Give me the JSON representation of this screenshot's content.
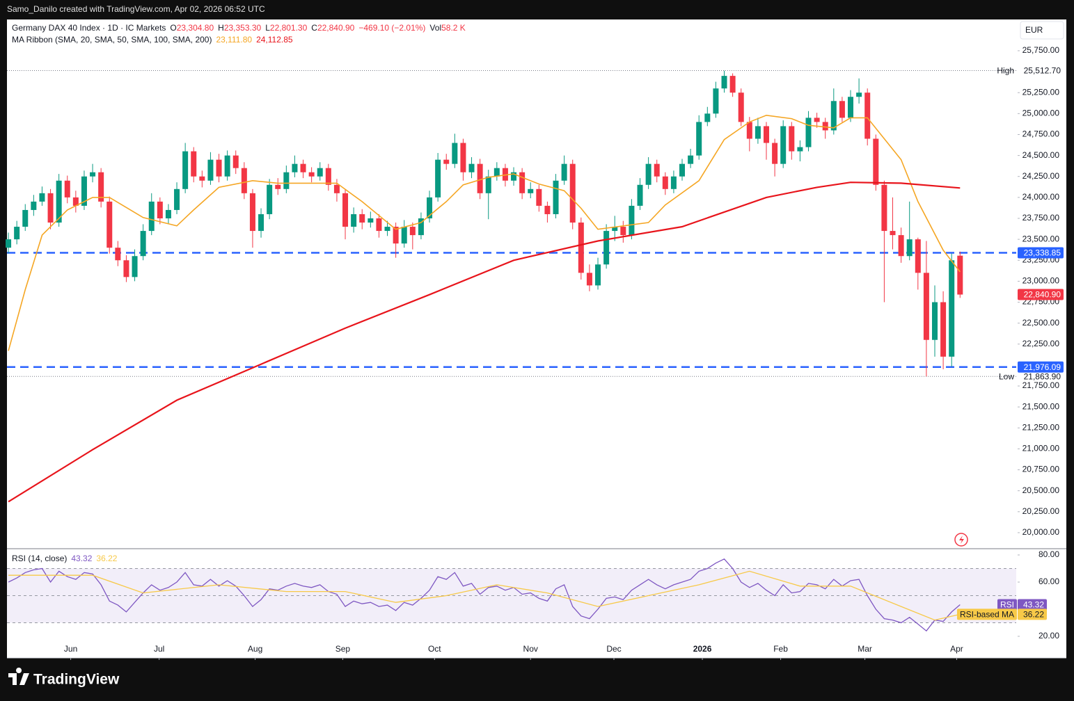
{
  "header": {
    "attribution": "Samo_Danilo created with TradingView.com, Apr 02, 2026 06:52 UTC",
    "brand": "TradingView"
  },
  "chart_data": [
    {
      "type": "candlestick",
      "title": "Germany DAX 40 Index · 1D · IC Markets",
      "ohlc_labels": [
        {
          "key": "O",
          "value": "23,304.80"
        },
        {
          "key": "H",
          "value": "23,353.30"
        },
        {
          "key": "L",
          "value": "22,801.30"
        },
        {
          "key": "C",
          "value": "22,840.90"
        }
      ],
      "change": "−469.10 (−2.01%)",
      "volume_key": "Vol",
      "volume": "58.2 K",
      "currency": "EUR",
      "up_color": "#089981",
      "down_color": "#f23645",
      "xlim": [
        -0.17,
        119.67
      ],
      "xticks": [
        {
          "value": 7.4,
          "label": "Jun"
        },
        {
          "value": 17.9,
          "label": "Jul"
        },
        {
          "value": 29.3,
          "label": "Aug"
        },
        {
          "value": 39.7,
          "label": "Sep"
        },
        {
          "value": 50.6,
          "label": "Oct"
        },
        {
          "value": 62,
          "label": "Nov"
        },
        {
          "value": 71.9,
          "label": "Dec"
        },
        {
          "value": 82.4,
          "label": "2026"
        },
        {
          "value": 91.7,
          "label": "Feb"
        },
        {
          "value": 101.7,
          "label": "Mar"
        },
        {
          "value": 112.6,
          "label": "Apr"
        }
      ],
      "ylim": [
        19817,
        26123
      ],
      "yticks": [
        {
          "value": 20000,
          "label": "20,000.00"
        },
        {
          "value": 20250,
          "label": "20,250.00"
        },
        {
          "value": 20500,
          "label": "20,500.00"
        },
        {
          "value": 20750,
          "label": "20,750.00"
        },
        {
          "value": 21000,
          "label": "21,000.00"
        },
        {
          "value": 21250,
          "label": "21,250.00"
        },
        {
          "value": 21500,
          "label": "21,500.00"
        },
        {
          "value": 21750,
          "label": "21,750.00"
        },
        {
          "value": 22250,
          "label": "22,250.00"
        },
        {
          "value": 22500,
          "label": "22,500.00"
        },
        {
          "value": 22750,
          "label": "22,750.00"
        },
        {
          "value": 23000,
          "label": "23,000.00"
        },
        {
          "value": 23250,
          "label": "23,250.00"
        },
        {
          "value": 23500,
          "label": "23,500.00"
        },
        {
          "value": 23750,
          "label": "23,750.00"
        },
        {
          "value": 24000,
          "label": "24,000.00"
        },
        {
          "value": 24250,
          "label": "24,250.00"
        },
        {
          "value": 24500,
          "label": "24,500.00"
        },
        {
          "value": 24750,
          "label": "24,750.00"
        },
        {
          "value": 25000,
          "label": "25,000.00"
        },
        {
          "value": 25250,
          "label": "25,250.00"
        },
        {
          "value": 25750,
          "label": "25,750.00"
        }
      ],
      "candles": [
        [
          23400,
          23580,
          23330,
          23500
        ],
        [
          23500,
          23720,
          23440,
          23650
        ],
        [
          23650,
          23920,
          23600,
          23850
        ],
        [
          23850,
          24030,
          23780,
          23950
        ],
        [
          23950,
          24130,
          23900,
          24050
        ],
        [
          24050,
          24100,
          23620,
          23700
        ],
        [
          23700,
          24280,
          23650,
          24200
        ],
        [
          24200,
          24260,
          23930,
          24000
        ],
        [
          24000,
          24080,
          23820,
          23900
        ],
        [
          23900,
          24320,
          23850,
          24250
        ],
        [
          24250,
          24400,
          24180,
          24300
        ],
        [
          24300,
          24350,
          23880,
          23950
        ],
        [
          23950,
          24010,
          23330,
          23400
        ],
        [
          23400,
          23480,
          23180,
          23250
        ],
        [
          23250,
          23310,
          22990,
          23050
        ],
        [
          23050,
          23380,
          23000,
          23300
        ],
        [
          23300,
          23680,
          23250,
          23600
        ],
        [
          23600,
          24050,
          23550,
          23950
        ],
        [
          23950,
          24000,
          23680,
          23750
        ],
        [
          23750,
          23920,
          23680,
          23850
        ],
        [
          23850,
          24180,
          23800,
          24100
        ],
        [
          24100,
          24650,
          24050,
          24550
        ],
        [
          24550,
          24600,
          24180,
          24250
        ],
        [
          24250,
          24320,
          24120,
          24200
        ],
        [
          24200,
          24540,
          24150,
          24450
        ],
        [
          24450,
          24520,
          24180,
          24250
        ],
        [
          24250,
          24560,
          24200,
          24500
        ],
        [
          24500,
          24560,
          24280,
          24350
        ],
        [
          24350,
          24420,
          23980,
          24050
        ],
        [
          24050,
          24100,
          23400,
          23600
        ],
        [
          23600,
          23870,
          23520,
          23800
        ],
        [
          23800,
          24220,
          23740,
          24150
        ],
        [
          24150,
          24230,
          24030,
          24100
        ],
        [
          24100,
          24380,
          24050,
          24300
        ],
        [
          24300,
          24500,
          24240,
          24400
        ],
        [
          24400,
          24450,
          24230,
          24300
        ],
        [
          24300,
          24360,
          24180,
          24250
        ],
        [
          24250,
          24420,
          24200,
          24350
        ],
        [
          24350,
          24400,
          24080,
          24150
        ],
        [
          24150,
          24220,
          23950,
          24050
        ],
        [
          24050,
          24100,
          23500,
          23650
        ],
        [
          23650,
          23880,
          23580,
          23800
        ],
        [
          23800,
          23860,
          23620,
          23700
        ],
        [
          23700,
          23830,
          23640,
          23750
        ],
        [
          23750,
          23800,
          23520,
          23600
        ],
        [
          23600,
          23720,
          23540,
          23650
        ],
        [
          23650,
          23700,
          23280,
          23450
        ],
        [
          23450,
          23730,
          23400,
          23650
        ],
        [
          23650,
          23700,
          23380,
          23550
        ],
        [
          23550,
          23820,
          23500,
          23750
        ],
        [
          23750,
          24080,
          23700,
          24000
        ],
        [
          24000,
          24530,
          23950,
          24450
        ],
        [
          24450,
          24520,
          24330,
          24400
        ],
        [
          24400,
          24760,
          24350,
          24650
        ],
        [
          24650,
          24700,
          24200,
          24300
        ],
        [
          24300,
          24480,
          24230,
          24400
        ],
        [
          24400,
          24460,
          23980,
          24050
        ],
        [
          24050,
          24330,
          23740,
          24250
        ],
        [
          24250,
          24420,
          24200,
          24350
        ],
        [
          24350,
          24400,
          24130,
          24200
        ],
        [
          24200,
          24360,
          24140,
          24300
        ],
        [
          24300,
          24350,
          23980,
          24050
        ],
        [
          24050,
          24180,
          23990,
          24100
        ],
        [
          24100,
          24150,
          23830,
          23900
        ],
        [
          23900,
          23950,
          23700,
          23800
        ],
        [
          23800,
          24280,
          23750,
          24200
        ],
        [
          24200,
          24500,
          24150,
          24400
        ],
        [
          24400,
          24450,
          23620,
          23700
        ],
        [
          23700,
          23760,
          23020,
          23100
        ],
        [
          23100,
          23200,
          22880,
          22950
        ],
        [
          22950,
          23280,
          22900,
          23200
        ],
        [
          23200,
          23680,
          23150,
          23600
        ],
        [
          23600,
          23780,
          23480,
          23650
        ],
        [
          23650,
          23720,
          23460,
          23550
        ],
        [
          23550,
          23980,
          23500,
          23900
        ],
        [
          23900,
          24230,
          23850,
          24150
        ],
        [
          24150,
          24480,
          24100,
          24400
        ],
        [
          24400,
          24450,
          24180,
          24250
        ],
        [
          24250,
          24300,
          24030,
          24100
        ],
        [
          24100,
          24320,
          24050,
          24250
        ],
        [
          24250,
          24460,
          24200,
          24400
        ],
        [
          24400,
          24580,
          24350,
          24500
        ],
        [
          24500,
          24980,
          24450,
          24900
        ],
        [
          24900,
          25080,
          24850,
          25000
        ],
        [
          25000,
          25380,
          24950,
          25300
        ],
        [
          25300,
          25512.7,
          25250,
          25450
        ],
        [
          25450,
          25480,
          25200,
          25250
        ],
        [
          25250,
          25300,
          24850,
          24900
        ],
        [
          24900,
          24960,
          24550,
          24700
        ],
        [
          24700,
          24950,
          24640,
          24850
        ],
        [
          24850,
          24900,
          24450,
          24650
        ],
        [
          24650,
          24700,
          24250,
          24400
        ],
        [
          24400,
          24920,
          24350,
          24850
        ],
        [
          24850,
          24900,
          24450,
          24550
        ],
        [
          24550,
          24680,
          24430,
          24600
        ],
        [
          24600,
          25030,
          24550,
          24950
        ],
        [
          24950,
          25010,
          24830,
          24900
        ],
        [
          24900,
          24950,
          24700,
          24800
        ],
        [
          24800,
          25300,
          24750,
          25150
        ],
        [
          25150,
          25200,
          24900,
          24950
        ],
        [
          24950,
          25280,
          24900,
          25200
        ],
        [
          25200,
          25420,
          25120,
          25250
        ],
        [
          25250,
          25300,
          24620,
          24700
        ],
        [
          24700,
          24750,
          24080,
          24150
        ],
        [
          24150,
          24200,
          22750,
          23600
        ],
        [
          23600,
          24000,
          23380,
          23550
        ],
        [
          23550,
          23640,
          23220,
          23300
        ],
        [
          23300,
          23950,
          23250,
          23500
        ],
        [
          23500,
          23520,
          22900,
          23100
        ],
        [
          23100,
          23480,
          21863.9,
          22300
        ],
        [
          22300,
          22950,
          22100,
          22750
        ],
        [
          22750,
          22880,
          21950,
          22100
        ],
        [
          22100,
          23330,
          21980,
          23250
        ],
        [
          23304.8,
          23353.3,
          22801.3,
          22840.9
        ]
      ],
      "ma_ribbon": {
        "label": "MA Ribbon (SMA, 20, SMA, 50, SMA, 100, SMA, 200)",
        "series": [
          {
            "color": "#f5a623",
            "value_label": "23,111.80",
            "x": [
              0,
              2,
              4,
              7,
              10,
              12,
              14,
              16,
              20,
              22,
              25,
              29,
              32,
              36,
              39,
              42,
              46,
              49,
              52,
              54,
              57,
              60,
              63,
              66,
              68,
              70,
              73,
              76,
              78,
              82,
              85,
              88,
              90,
              93,
              95,
              98,
              100,
              102,
              104,
              106,
              108,
              111,
              113
            ],
            "values": [
              22170,
              22900,
              23550,
              23850,
              24000,
              24000,
              23880,
              23760,
              23660,
              23850,
              24120,
              24200,
              24170,
              24170,
              24170,
              23950,
              23620,
              23700,
              23950,
              24150,
              24240,
              24280,
              24160,
              24080,
              23870,
              23620,
              23660,
              23700,
              23910,
              24200,
              24690,
              24900,
              24980,
              24940,
              24860,
              24830,
              24950,
              24950,
              24700,
              24450,
              23950,
              23370,
              23111.8
            ]
          },
          {
            "color": "#e8141b",
            "value_label": "24,112.85",
            "x": [
              0,
              10,
              20,
              30,
              40,
              50,
              60,
              70,
              80,
              90,
              96,
              100,
              106,
              113
            ],
            "values": [
              20370,
              20990,
              21580,
              22010,
              22440,
              22840,
              23250,
              23480,
              23650,
              24000,
              24120,
              24180,
              24170,
              24112.85
            ]
          }
        ]
      },
      "levels": [
        {
          "value": 23338.85,
          "label": "23,338.85",
          "color": "#2962ff"
        },
        {
          "value": 21976.09,
          "label": "21,976.09",
          "color": "#2962ff"
        }
      ],
      "high": {
        "name": "High",
        "value": 25512.7,
        "label": "25,512.70"
      },
      "low": {
        "name": "Low",
        "value": 21863.9,
        "label": "21,863.90"
      },
      "last": {
        "value": 22840.9,
        "label": "22,840.90"
      }
    },
    {
      "type": "line",
      "title": "RSI (14, close)",
      "xlim": [
        -0.17,
        119.67
      ],
      "ylim": [
        4.6,
        84.1
      ],
      "yticks": [
        {
          "value": 80,
          "label": "80.00"
        },
        {
          "value": 60,
          "label": "60.00"
        },
        {
          "value": 20,
          "label": "20.00"
        }
      ],
      "bands": [
        70,
        50,
        30
      ],
      "series": [
        {
          "name": "RSI",
          "color": "#7e57c2",
          "value_label": "43.32",
          "values": [
            60,
            63,
            67,
            69,
            70,
            60,
            68,
            64,
            62,
            67,
            66,
            58,
            46,
            43,
            38,
            45,
            52,
            58,
            54,
            56,
            60,
            67,
            58,
            57,
            62,
            57,
            61,
            57,
            50,
            42,
            47,
            55,
            54,
            57,
            59,
            57,
            56,
            58,
            53,
            51,
            42,
            46,
            44,
            45,
            42,
            43,
            39,
            45,
            43,
            48,
            54,
            64,
            62,
            67,
            57,
            59,
            51,
            56,
            57,
            54,
            56,
            51,
            52,
            48,
            46,
            55,
            58,
            42,
            35,
            33,
            40,
            48,
            49,
            47,
            54,
            58,
            62,
            58,
            55,
            58,
            60,
            62,
            68,
            70,
            74,
            77,
            70,
            60,
            56,
            59,
            54,
            50,
            58,
            52,
            53,
            59,
            58,
            55,
            62,
            57,
            61,
            62,
            50,
            40,
            33,
            32,
            30,
            34,
            29,
            24,
            32,
            31,
            38,
            43.32
          ]
        },
        {
          "name": "RSI-based MA",
          "color": "#f7c948",
          "value_label": "36.22",
          "x": [
            0,
            10,
            16,
            25,
            33,
            40,
            46,
            52,
            58,
            64,
            70,
            76,
            82,
            88,
            94,
            100,
            106,
            110,
            113
          ],
          "values": [
            65,
            65,
            52,
            58,
            53,
            53,
            45,
            50,
            58,
            52,
            42,
            50,
            58,
            68,
            57,
            57,
            42,
            32,
            36.22
          ]
        }
      ]
    }
  ]
}
